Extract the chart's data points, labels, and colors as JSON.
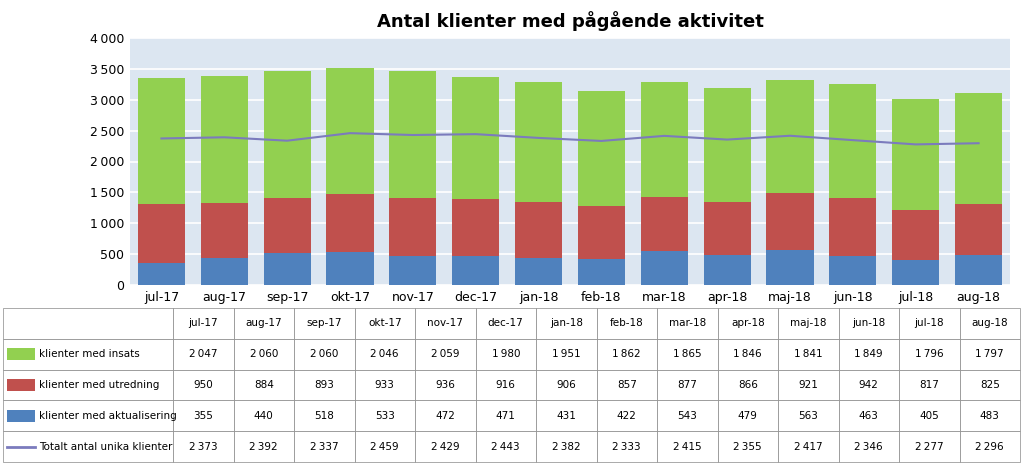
{
  "title": "Antal klienter med pågående aktivitet",
  "categories": [
    "jul-17",
    "aug-17",
    "sep-17",
    "okt-17",
    "nov-17",
    "dec-17",
    "jan-18",
    "feb-18",
    "mar-18",
    "apr-18",
    "maj-18",
    "jun-18",
    "jul-18",
    "aug-18"
  ],
  "insats": [
    2047,
    2060,
    2060,
    2046,
    2059,
    1980,
    1951,
    1862,
    1865,
    1846,
    1841,
    1849,
    1796,
    1797
  ],
  "utredning": [
    950,
    884,
    893,
    933,
    936,
    916,
    906,
    857,
    877,
    866,
    921,
    942,
    817,
    825
  ],
  "aktualisering": [
    355,
    440,
    518,
    533,
    472,
    471,
    431,
    422,
    543,
    479,
    563,
    463,
    405,
    483
  ],
  "unika": [
    2373,
    2392,
    2337,
    2459,
    2429,
    2443,
    2382,
    2333,
    2415,
    2355,
    2417,
    2346,
    2277,
    2296
  ],
  "color_insats": "#92d050",
  "color_utredning": "#c0504d",
  "color_aktualisering": "#4f81bd",
  "color_unika": "#7b7bbd",
  "ylim": [
    0,
    4000
  ],
  "yticks": [
    0,
    500,
    1000,
    1500,
    2000,
    2500,
    3000,
    3500,
    4000
  ],
  "table_row_labels": [
    "klienter med insats",
    "klienter med utredning",
    "klienter med aktualisering",
    "Totalt antal unika klienter"
  ],
  "chart_bg": "#dce6f1",
  "fig_bg": "#ffffff"
}
